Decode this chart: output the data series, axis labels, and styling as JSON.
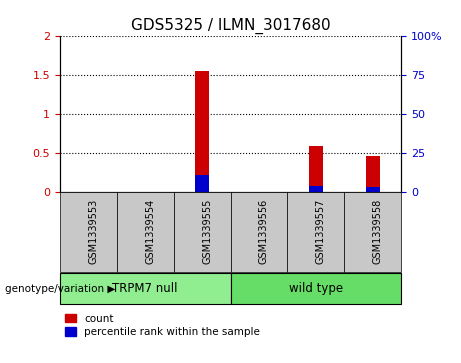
{
  "title": "GDS5325 / ILMN_3017680",
  "samples": [
    "GSM1339553",
    "GSM1339554",
    "GSM1339555",
    "GSM1339556",
    "GSM1339557",
    "GSM1339558"
  ],
  "count_values": [
    0.0,
    0.0,
    1.55,
    0.0,
    0.6,
    0.47
  ],
  "percentile_values": [
    0.0,
    0.0,
    11.0,
    0.0,
    4.0,
    3.5
  ],
  "ylim_left": [
    0,
    2
  ],
  "ylim_right": [
    0,
    100
  ],
  "yticks_left": [
    0,
    0.5,
    1.0,
    1.5,
    2.0
  ],
  "ytick_labels_left": [
    "0",
    "0.5",
    "1",
    "1.5",
    "2"
  ],
  "yticks_right": [
    0,
    25,
    50,
    75,
    100
  ],
  "ytick_labels_right": [
    "0",
    "25",
    "50",
    "75",
    "100%"
  ],
  "groups": [
    {
      "label": "TRPM7 null",
      "indices": [
        0,
        1,
        2
      ],
      "color": "#90EE90"
    },
    {
      "label": "wild type",
      "indices": [
        3,
        4,
        5
      ],
      "color": "#66DD66"
    }
  ],
  "group_label_prefix": "genotype/variation",
  "count_color": "#CC0000",
  "percentile_color": "#0000CC",
  "sample_bg_color": "#C8C8C8",
  "bar_width": 0.25,
  "title_fontsize": 11,
  "axis_label_color_left": "#CC0000",
  "axis_label_color_right": "#0000CC",
  "legend_fontsize": 7.5
}
